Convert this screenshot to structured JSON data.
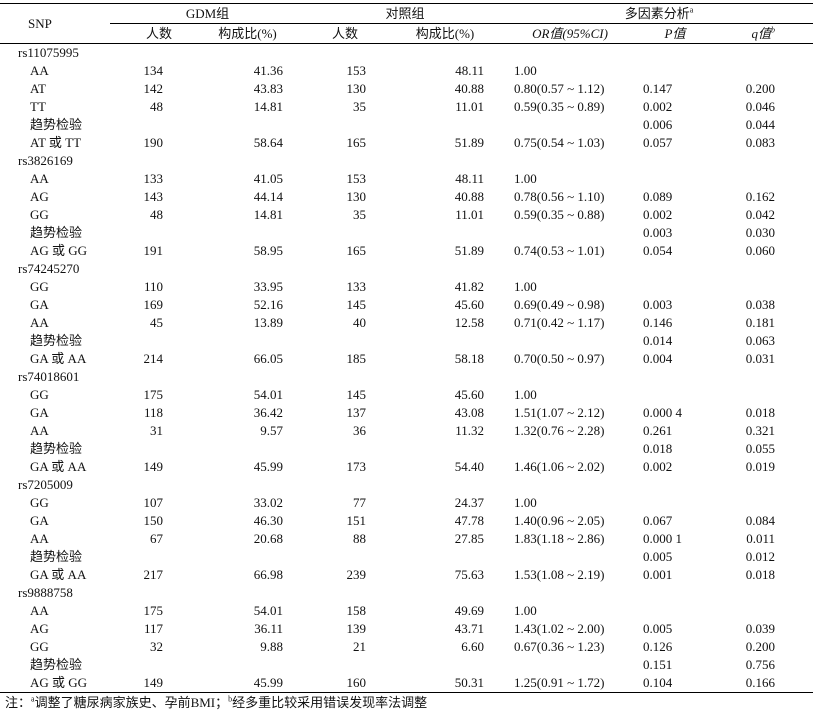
{
  "header": {
    "snp": "SNP",
    "gdm": "GDM组",
    "control": "对照组",
    "multi": "多因素分析",
    "multi_sup": "a",
    "cols": [
      "人数",
      "构成比(%)",
      "人数",
      "构成比(%)",
      "OR值(95%CI)",
      "P值",
      "q值"
    ],
    "q_sup": "b"
  },
  "groups": [
    {
      "snp": "rs11075995",
      "rows": [
        [
          "AA",
          "134",
          "41.36",
          "153",
          "48.11",
          "1.00",
          null,
          null
        ],
        [
          "AT",
          "142",
          "43.83",
          "130",
          "40.88",
          "0.80(0.57 ~ 1.12)",
          "0.147",
          "0.200"
        ],
        [
          "TT",
          "48",
          "14.81",
          "35",
          "11.01",
          "0.59(0.35 ~ 0.89)",
          "0.002",
          "0.046"
        ],
        [
          "趋势检验",
          null,
          null,
          null,
          null,
          null,
          "0.006",
          "0.044"
        ],
        [
          "AT 或 TT",
          "190",
          "58.64",
          "165",
          "51.89",
          "0.75(0.54 ~ 1.03)",
          "0.057",
          "0.083"
        ]
      ]
    },
    {
      "snp": "rs3826169",
      "rows": [
        [
          "AA",
          "133",
          "41.05",
          "153",
          "48.11",
          "1.00",
          null,
          null
        ],
        [
          "AG",
          "143",
          "44.14",
          "130",
          "40.88",
          "0.78(0.56 ~ 1.10)",
          "0.089",
          "0.162"
        ],
        [
          "GG",
          "48",
          "14.81",
          "35",
          "11.01",
          "0.59(0.35 ~ 0.88)",
          "0.002",
          "0.042"
        ],
        [
          "趋势检验",
          null,
          null,
          null,
          null,
          null,
          "0.003",
          "0.030"
        ],
        [
          "AG 或 GG",
          "191",
          "58.95",
          "165",
          "51.89",
          "0.74(0.53 ~ 1.01)",
          "0.054",
          "0.060"
        ]
      ]
    },
    {
      "snp": "rs74245270",
      "rows": [
        [
          "GG",
          "110",
          "33.95",
          "133",
          "41.82",
          "1.00",
          null,
          null
        ],
        [
          "GA",
          "169",
          "52.16",
          "145",
          "45.60",
          "0.69(0.49 ~ 0.98)",
          "0.003",
          "0.038"
        ],
        [
          "AA",
          "45",
          "13.89",
          "40",
          "12.58",
          "0.71(0.42 ~ 1.17)",
          "0.146",
          "0.181"
        ],
        [
          "趋势检验",
          null,
          null,
          null,
          null,
          null,
          "0.014",
          "0.063"
        ],
        [
          "GA 或 AA",
          "214",
          "66.05",
          "185",
          "58.18",
          "0.70(0.50 ~ 0.97)",
          "0.004",
          "0.031"
        ]
      ]
    },
    {
      "snp": "rs74018601",
      "rows": [
        [
          "GG",
          "175",
          "54.01",
          "145",
          "45.60",
          "1.00",
          null,
          null
        ],
        [
          "GA",
          "118",
          "36.42",
          "137",
          "43.08",
          "1.51(1.07 ~ 2.12)",
          "0.000 4",
          "0.018"
        ],
        [
          "AA",
          "31",
          "9.57",
          "36",
          "11.32",
          "1.32(0.76 ~ 2.28)",
          "0.261",
          "0.321"
        ],
        [
          "趋势检验",
          null,
          null,
          null,
          null,
          null,
          "0.018",
          "0.055"
        ],
        [
          "GA 或 AA",
          "149",
          "45.99",
          "173",
          "54.40",
          "1.46(1.06 ~ 2.02)",
          "0.002",
          "0.019"
        ]
      ]
    },
    {
      "snp": "rs7205009",
      "rows": [
        [
          "GG",
          "107",
          "33.02",
          "77",
          "24.37",
          "1.00",
          null,
          null
        ],
        [
          "GA",
          "150",
          "46.30",
          "151",
          "47.78",
          "1.40(0.96 ~ 2.05)",
          "0.067",
          "0.084"
        ],
        [
          "AA",
          "67",
          "20.68",
          "88",
          "27.85",
          "1.83(1.18 ~ 2.86)",
          "0.000 1",
          "0.011"
        ],
        [
          "趋势检验",
          null,
          null,
          null,
          null,
          null,
          "0.005",
          "0.012"
        ],
        [
          "GA 或 AA",
          "217",
          "66.98",
          "239",
          "75.63",
          "1.53(1.08 ~ 2.19)",
          "0.001",
          "0.018"
        ]
      ]
    },
    {
      "snp": "rs9888758",
      "rows": [
        [
          "AA",
          "175",
          "54.01",
          "158",
          "49.69",
          "1.00",
          null,
          null
        ],
        [
          "AG",
          "117",
          "36.11",
          "139",
          "43.71",
          "1.43(1.02 ~ 2.00)",
          "0.005",
          "0.039"
        ],
        [
          "GG",
          "32",
          "9.88",
          "21",
          "6.60",
          "0.67(0.36 ~ 1.23)",
          "0.126",
          "0.200"
        ],
        [
          "趋势检验",
          null,
          null,
          null,
          null,
          null,
          "0.151",
          "0.756"
        ],
        [
          "AG 或 GG",
          "149",
          "45.99",
          "160",
          "50.31",
          "1.25(0.91 ~ 1.72)",
          "0.104",
          "0.166"
        ]
      ]
    }
  ],
  "note": {
    "prefix": "注：",
    "a_mark": "a",
    "a_text": "调整了糖尿病家族史、孕前BMI；",
    "b_mark": "b",
    "b_text": "经多重比较采用错误发现率法调整"
  }
}
